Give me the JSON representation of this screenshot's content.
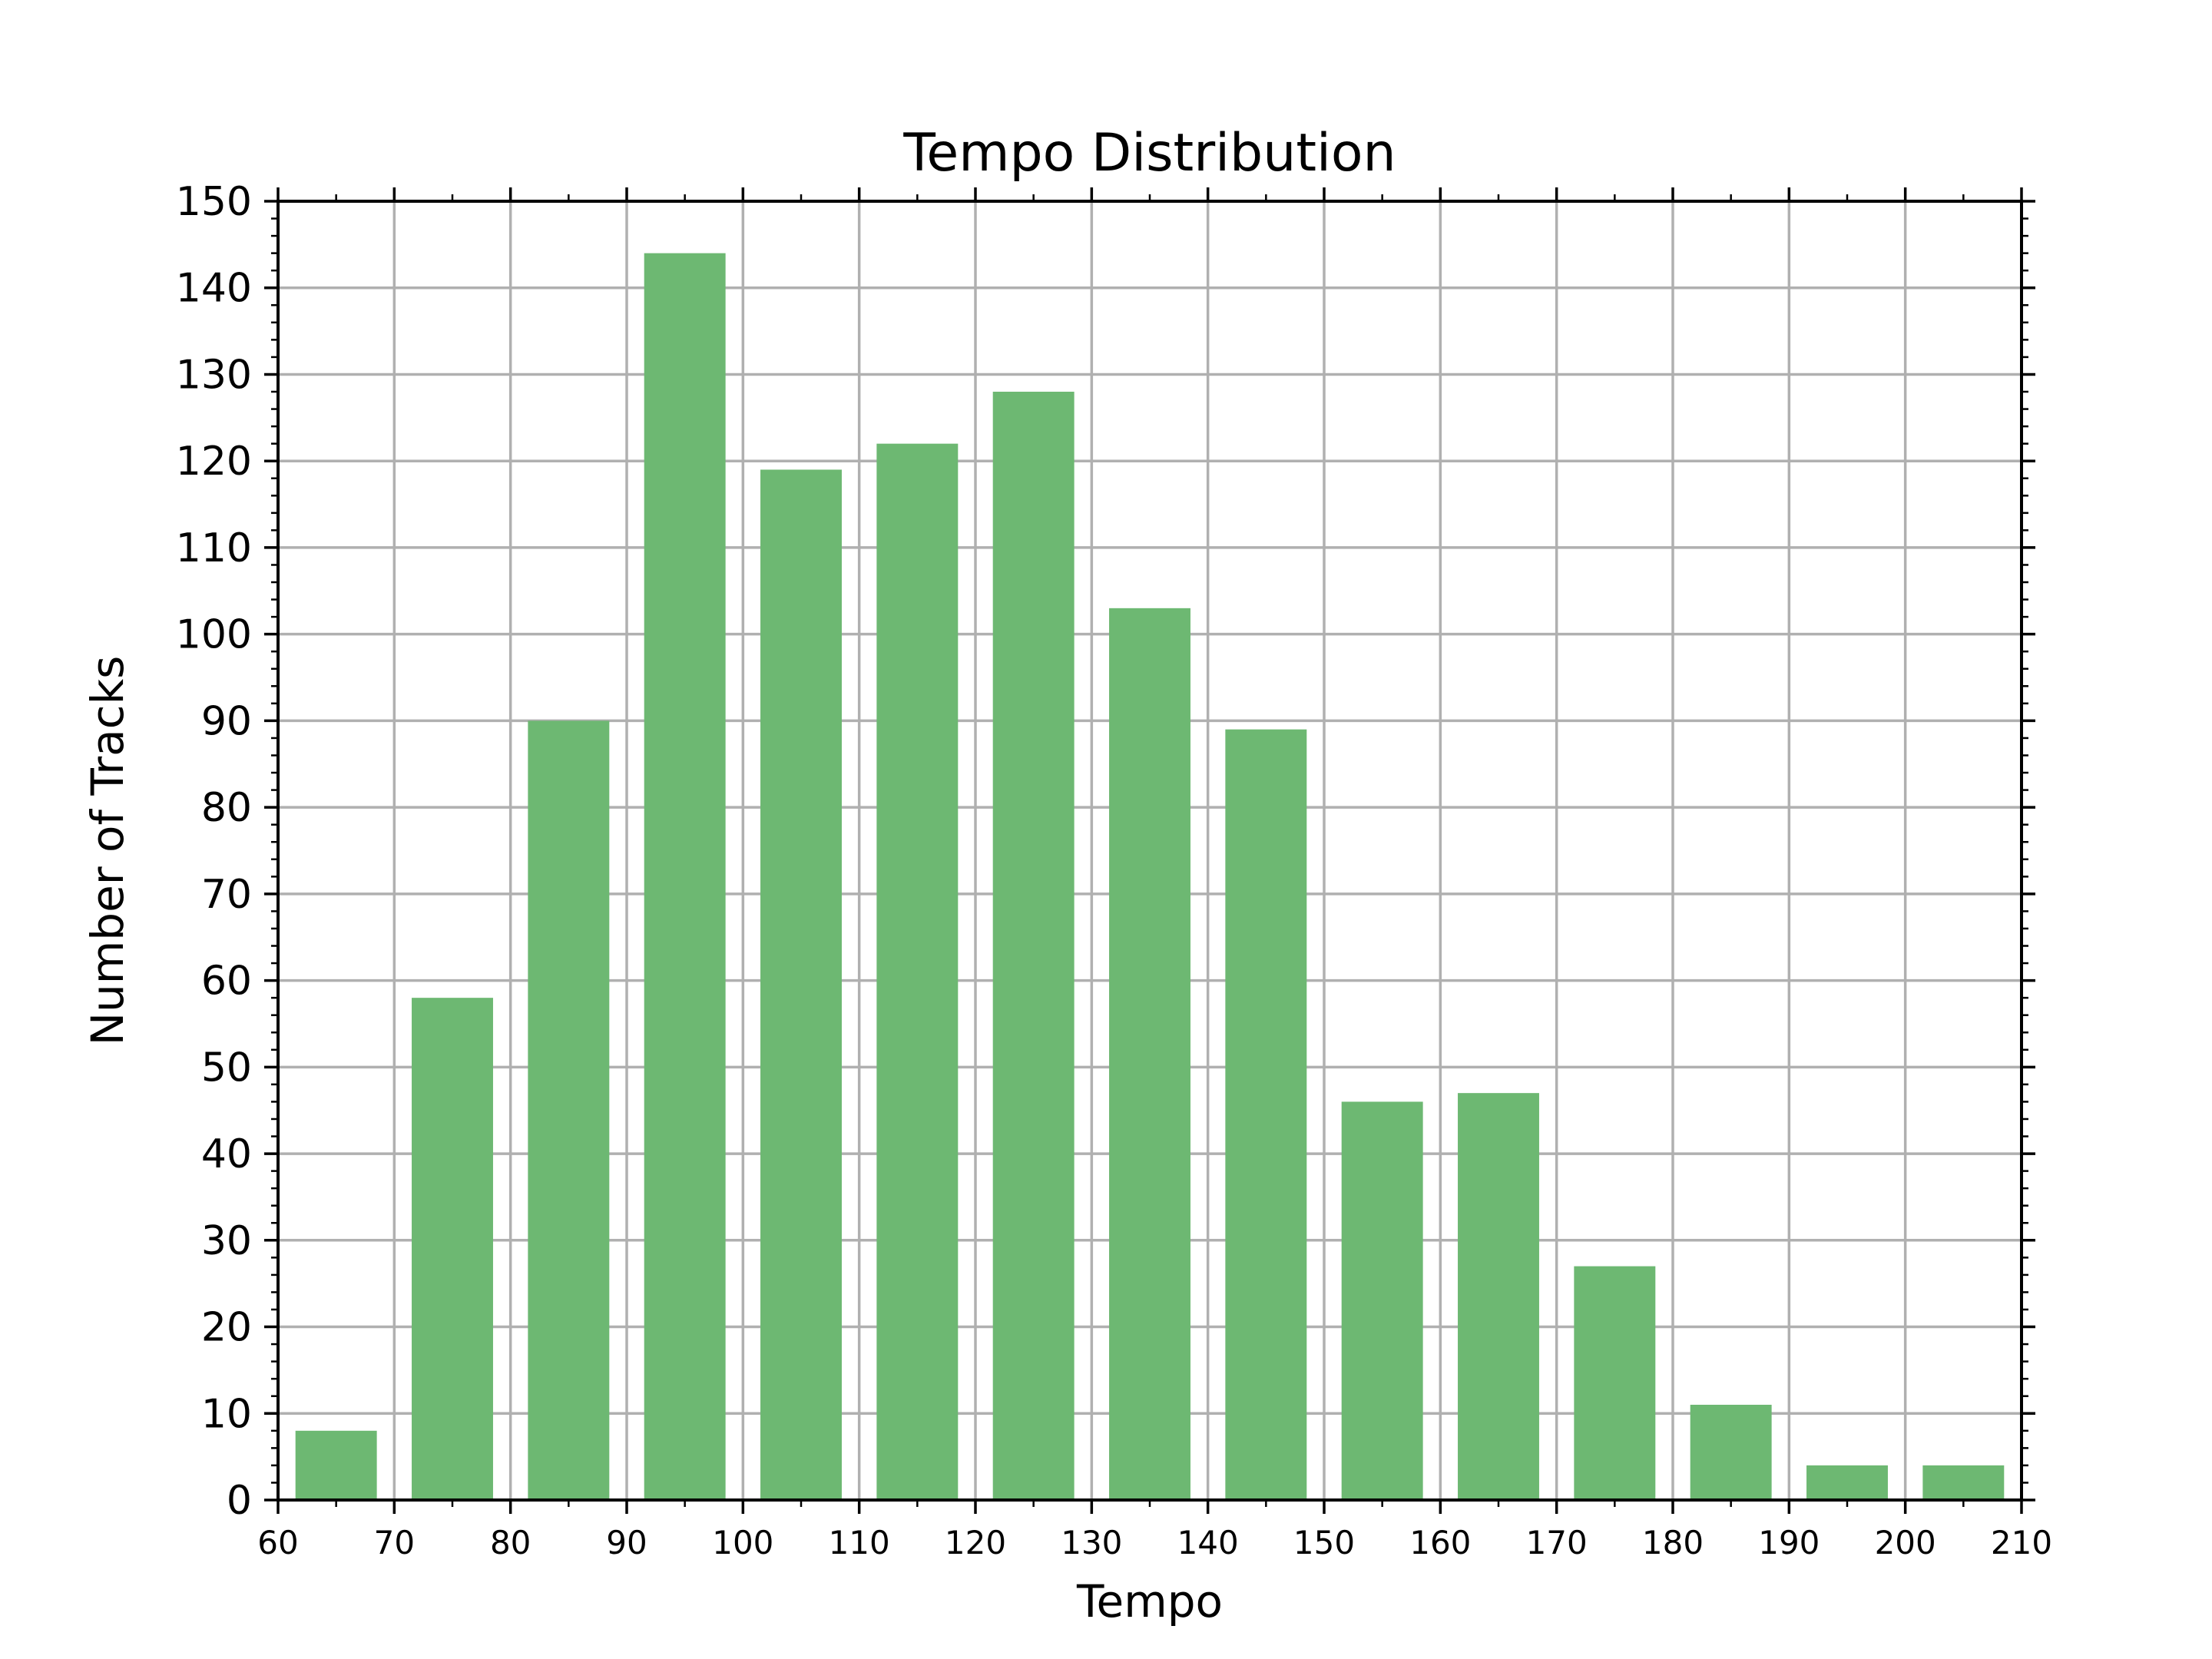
{
  "chart_data": {
    "type": "bar",
    "title": "Tempo Distribution",
    "xlabel": "Tempo",
    "ylabel": "Number of Tracks",
    "xlim": [
      60,
      210
    ],
    "ylim": [
      0,
      150
    ],
    "x_ticks": [
      60,
      70,
      80,
      90,
      100,
      110,
      120,
      130,
      140,
      150,
      160,
      170,
      180,
      190,
      200,
      210
    ],
    "y_ticks": [
      0,
      10,
      20,
      30,
      40,
      50,
      60,
      70,
      80,
      90,
      100,
      110,
      120,
      130,
      140,
      150
    ],
    "bin_edges": [
      60,
      70,
      80,
      90,
      100,
      110,
      120,
      130,
      140,
      150,
      160,
      170,
      180,
      190,
      200,
      210
    ],
    "values": [
      8,
      58,
      90,
      144,
      119,
      122,
      128,
      103,
      89,
      46,
      47,
      27,
      11,
      4,
      4
    ],
    "bar_color": "#6db872",
    "grid": true,
    "legend": "none"
  }
}
